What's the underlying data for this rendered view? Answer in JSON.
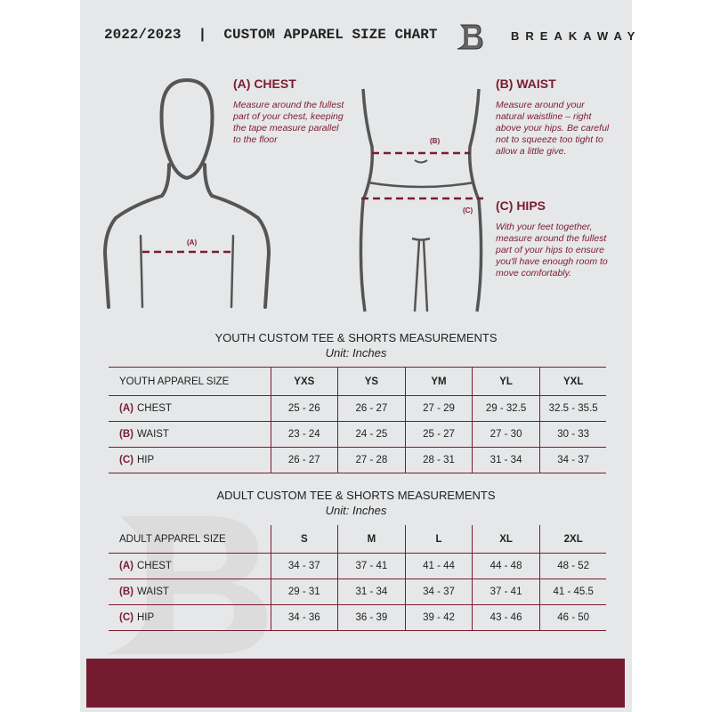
{
  "header": {
    "title": "2022/2023  |  CUSTOM APPAREL SIZE CHART",
    "brand": "BREAKAWAY"
  },
  "guide": {
    "chest": {
      "heading": "(A) CHEST",
      "text": "Measure around the fullest part of your chest, keeping the tape measure parallel to the floor",
      "marker": "(A)"
    },
    "waist": {
      "heading": "(B) WAIST",
      "text": "Measure around your natural waistline – right above your hips. Be careful not to squeeze too tight to allow a little give.",
      "marker": "(B)"
    },
    "hips": {
      "heading": "(C) HIPS",
      "text": "With your feet together, measure around the fullest part of your hips to ensure you'll have enough room to move comfortably.",
      "marker": "(C)"
    }
  },
  "colors": {
    "accent": "#7a1c30",
    "background": "#e6e7e8"
  },
  "youth": {
    "title": "YOUTH CUSTOM TEE & SHORTS MEASUREMENTS",
    "unit": "Unit: Inches",
    "size_header": "YOUTH APPAREL SIZE",
    "sizes": [
      "YXS",
      "YS",
      "YM",
      "YL",
      "YXL"
    ],
    "rows": [
      {
        "key": "(A)",
        "label": "CHEST",
        "values": [
          "25 - 26",
          "26 - 27",
          "27 - 29",
          "29 - 32.5",
          "32.5 - 35.5"
        ]
      },
      {
        "key": "(B)",
        "label": "WAIST",
        "values": [
          "23 - 24",
          "24 - 25",
          "25 - 27",
          "27 - 30",
          "30 - 33"
        ]
      },
      {
        "key": "(C)",
        "label": "HIP",
        "values": [
          "26 - 27",
          "27 - 28",
          "28 - 31",
          "31 - 34",
          "34 - 37"
        ]
      }
    ]
  },
  "adult": {
    "title": "ADULT CUSTOM TEE & SHORTS MEASUREMENTS",
    "unit": "Unit: Inches",
    "size_header": "ADULT APPAREL SIZE",
    "sizes": [
      "S",
      "M",
      "L",
      "XL",
      "2XL"
    ],
    "rows": [
      {
        "key": "(A)",
        "label": "CHEST",
        "values": [
          "34 - 37",
          "37 - 41",
          "41 - 44",
          "44 - 48",
          "48 - 52"
        ]
      },
      {
        "key": "(B)",
        "label": "WAIST",
        "values": [
          "29 - 31",
          "31 - 34",
          "34 - 37",
          "37 - 41",
          "41 - 45.5"
        ]
      },
      {
        "key": "(C)",
        "label": "HIP",
        "values": [
          "34 - 36",
          "36 - 39",
          "39 - 42",
          "43 - 46",
          "46 - 50"
        ]
      }
    ]
  }
}
